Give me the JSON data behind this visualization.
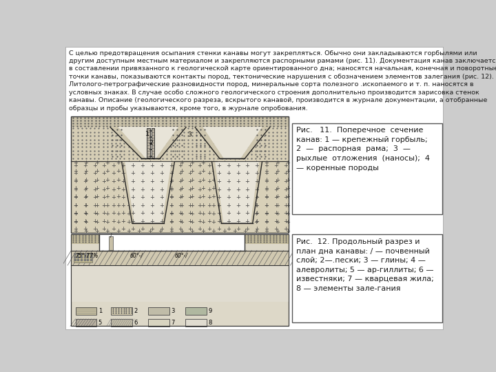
{
  "text_color": "#1a1a1a",
  "main_text": "С целью предотвращения осыпания стенки канавы могут закрепляться. Обычно они закладываются горбылями или\nдругим доступным местным материалом и закрепляются распорными рамами (рис. 11). Документация канав заключается\nв составлении привязанного к геологической карте ориентированного дна; наносятся начальная, конечная и поворотные\nточки канавы, показываются контакты пород, тектонические нарушения с обозначением элементов залегания (рис. 12).\nЛитолого-петрографические разновидности пород, минеральные сорта полезного .ископаемого и т. п. наносятся в\nусловных знаках. В случае особо сложного геологического строения дополнительно производится зарисовка стенок\nканавы. Описание (геологического разреза, вскрытого канавой, производится в журнале документации, а отобранные\nобразцы и пробы указываются, кроме того, в журнале опробования.",
  "caption1": "Рис.   11.  Поперечное  сечение\nканав: 1 — крепежный горбыль;\n2  —  распорная  рама;  3  —\nрыхлые  отложения  (наносы);  4\n— коренные породы",
  "caption2": "Рис.  12. Продольный разрез и\nплан дна канавы: / — почвенный\nслой; 2—.пески; 3 — глины; 4 —\nалевролиты; 5 — ар-гиллиты; 6 —\nизвестняки; 7 — кварцевая жила;\n8 — элементы зале-гания"
}
